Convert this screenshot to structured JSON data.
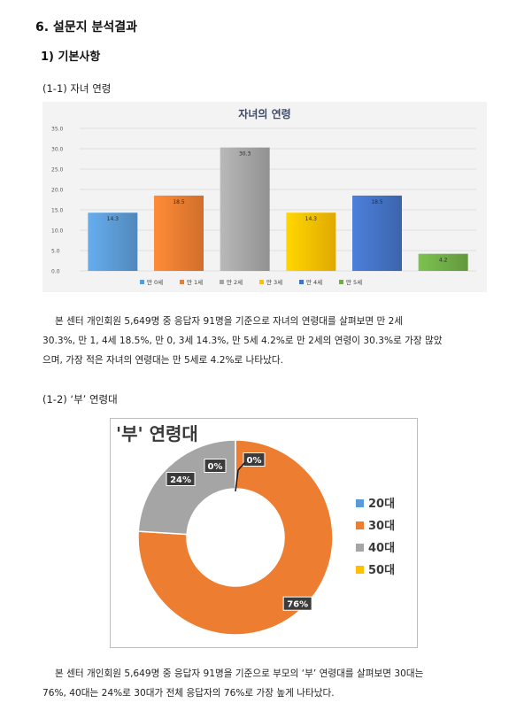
{
  "section_title": "6. 설문지 분석결과",
  "subsection_title": "1) 기본사항",
  "q1": {
    "heading": "(1-1) 자녀 연령",
    "paragraph_lines": [
      "본 센터 개인회원 5,649명 중 응답자 91명을 기준으로 자녀의 연령대를 살펴보면 만 2세",
      "30.3%, 만 1, 4세 18.5%, 만 0, 3세 14.3%, 만 5세 4.2%로 만 2세의 연령이 30.3%로 가장 많았",
      "으며, 가장 적은 자녀의 연령대는 만 5세로 4.2%로 나타났다."
    ]
  },
  "q2": {
    "heading": "(1-2) ‘부’ 연령대",
    "paragraph_lines": [
      "본 센터 개인회원 5,649명 중 응답자 91명을 기준으로 부모의 ‘부’ 연령대를 살펴보면 30대는",
      "76%, 40대는 24%로 30대가 전체 응답자의 76%로 가장 높게 나타났다."
    ]
  },
  "chart_data": [
    {
      "type": "bar",
      "title": "자녀의 연령",
      "categories": [
        "만 0세",
        "만 1세",
        "만 2세",
        "만 3세",
        "만 4세",
        "만 5세"
      ],
      "values": [
        14.3,
        18.5,
        30.3,
        14.3,
        18.5,
        4.2
      ],
      "value_labels": [
        "14.3",
        "18.5",
        "30.3",
        "14.3",
        "18.5",
        "4.2"
      ],
      "colors": [
        "#5b9bd5",
        "#ed7d31",
        "#a5a5a5",
        "#ffc000",
        "#4472c4",
        "#70ad47"
      ],
      "yticks": [
        "0.0",
        "5.0",
        "10.0",
        "15.0",
        "20.0",
        "25.0",
        "30.0",
        "35.0"
      ],
      "ylim": [
        0,
        35
      ],
      "grid": true,
      "legend": "bottom"
    },
    {
      "type": "pie",
      "title": "'부' 연령대",
      "categories": [
        "20대",
        "30대",
        "40대",
        "50대"
      ],
      "values": [
        0,
        76,
        24,
        0
      ],
      "value_labels": [
        "0%",
        "76%",
        "24%",
        "0%"
      ],
      "colors": [
        "#5b9bd5",
        "#ed7d31",
        "#a5a5a5",
        "#ffc000"
      ],
      "legend": "right"
    }
  ]
}
